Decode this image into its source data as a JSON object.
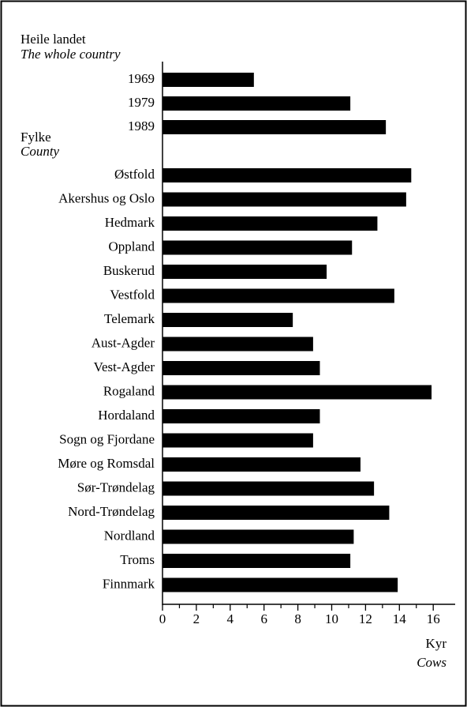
{
  "chart_data": {
    "type": "bar",
    "orientation": "horizontal",
    "group_labels": [
      [
        "Heile landet",
        "The whole country"
      ],
      [
        "Fylke",
        "County"
      ]
    ],
    "categories": [
      "1969",
      "1979",
      "1989",
      "Østfold",
      "Akershus og Oslo",
      "Hedmark",
      "Oppland",
      "Buskerud",
      "Vestfold",
      "Telemark",
      "Aust-Agder",
      "Vest-Agder",
      "Rogaland",
      "Hordaland",
      "Sogn og Fjordane",
      "Møre og Romsdal",
      "Sør-Trøndelag",
      "Nord-Trøndelag",
      "Nordland",
      "Troms",
      "Finnmark"
    ],
    "values": [
      5.4,
      11.1,
      13.2,
      14.7,
      14.4,
      12.7,
      11.2,
      9.7,
      13.7,
      7.7,
      8.9,
      9.3,
      15.9,
      9.3,
      8.9,
      11.7,
      12.5,
      13.4,
      11.3,
      11.1,
      13.9
    ],
    "color": "#000000",
    "xlim": [
      0,
      17
    ],
    "xticks": [
      0,
      2,
      4,
      6,
      8,
      10,
      12,
      14,
      16
    ],
    "minor_xticks": [
      1,
      3,
      5,
      7,
      9,
      11,
      13,
      15
    ],
    "xlabel": [
      "Kyr",
      "Cows"
    ]
  }
}
